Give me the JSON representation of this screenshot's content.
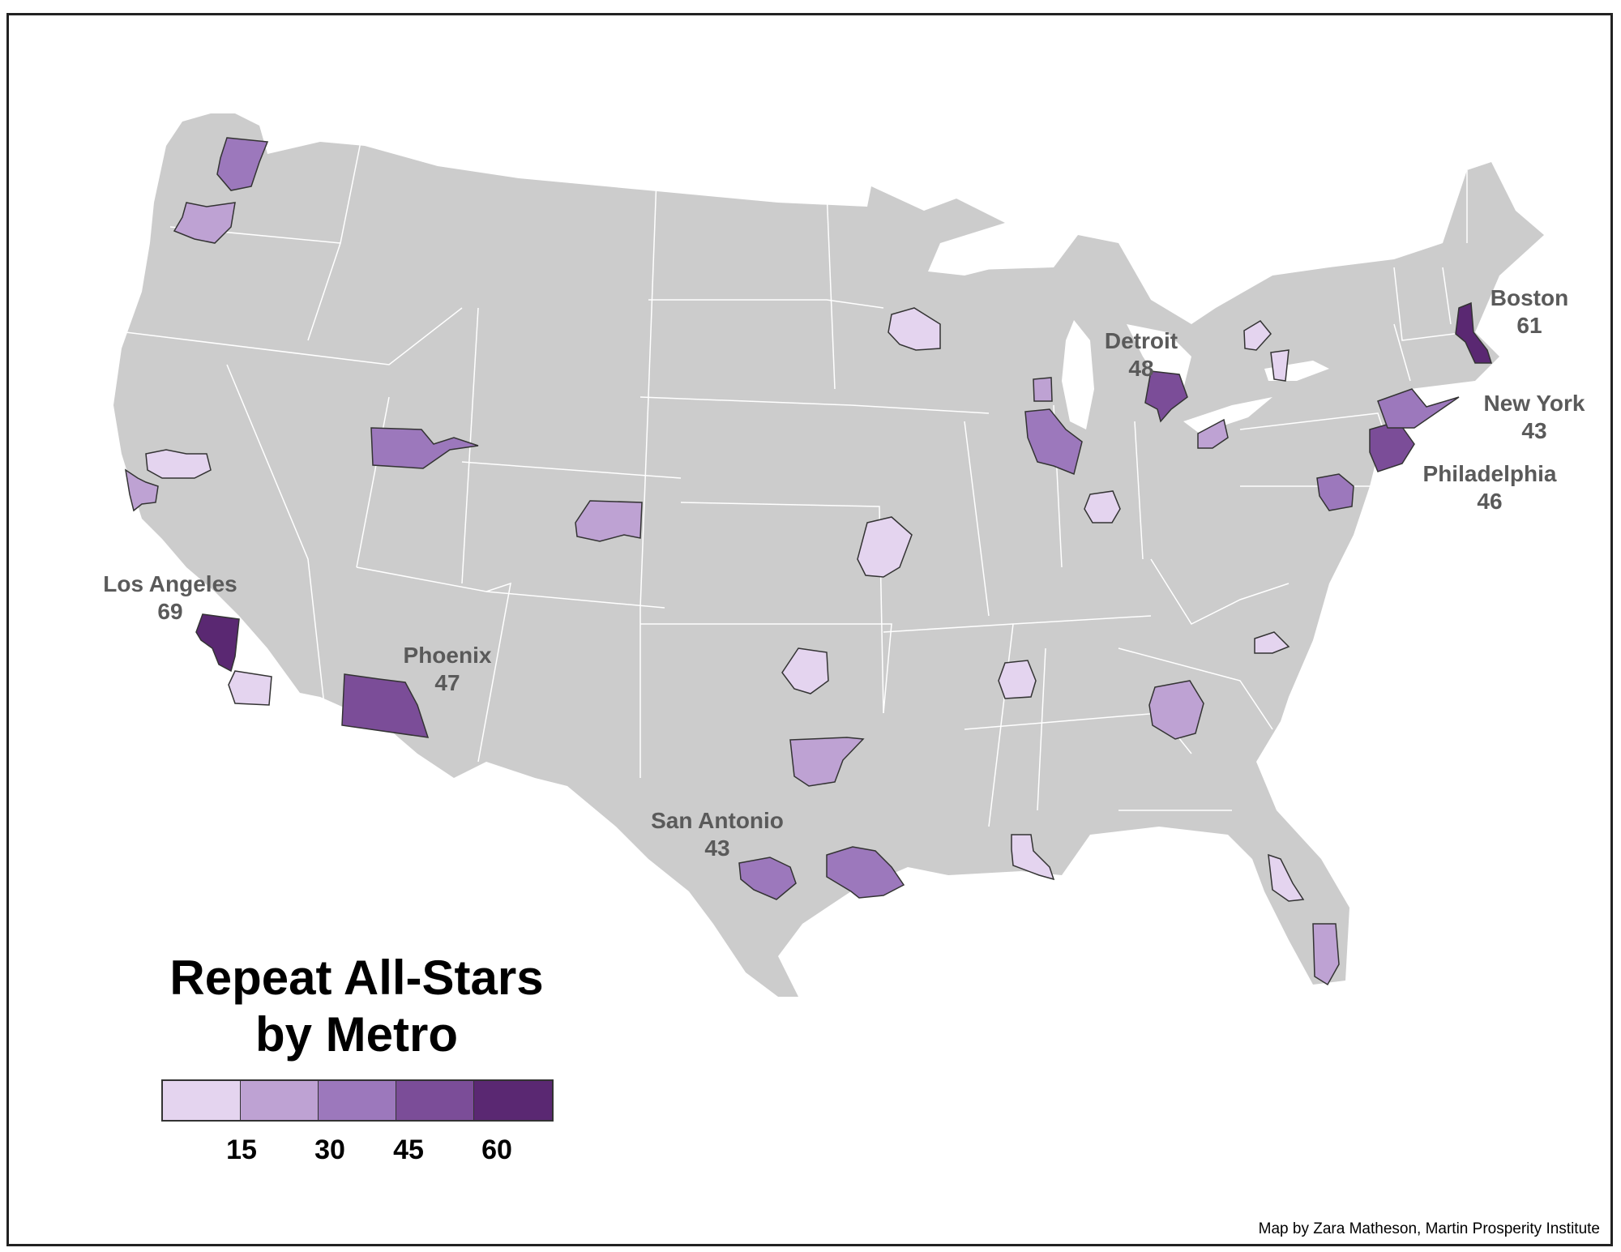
{
  "map": {
    "title_line1": "Repeat All-Stars",
    "title_line2": "by Metro",
    "credit": "Map by Zara Matheson, Martin Prosperity Institute",
    "colors": {
      "land": "#cccccc",
      "state_border": "#ffffff",
      "class_1": "#e4d4ef",
      "class_2": "#bea2d3",
      "class_3": "#9c78bc",
      "class_4": "#7b4d98",
      "class_5": "#5a2872"
    },
    "legend": {
      "colors": [
        "#e4d4ef",
        "#bea2d3",
        "#9c78bc",
        "#7b4d98",
        "#5a2872"
      ],
      "ticks": [
        "15",
        "30",
        "45",
        "60"
      ]
    },
    "labeled_metros": [
      {
        "name": "Los Angeles",
        "value": "69"
      },
      {
        "name": "Boston",
        "value": "61"
      },
      {
        "name": "Detroit",
        "value": "48"
      },
      {
        "name": "Phoenix",
        "value": "47"
      },
      {
        "name": "Philadelphia",
        "value": "46"
      },
      {
        "name": "New York",
        "value": "43"
      },
      {
        "name": "San Antonio",
        "value": "43"
      }
    ]
  }
}
